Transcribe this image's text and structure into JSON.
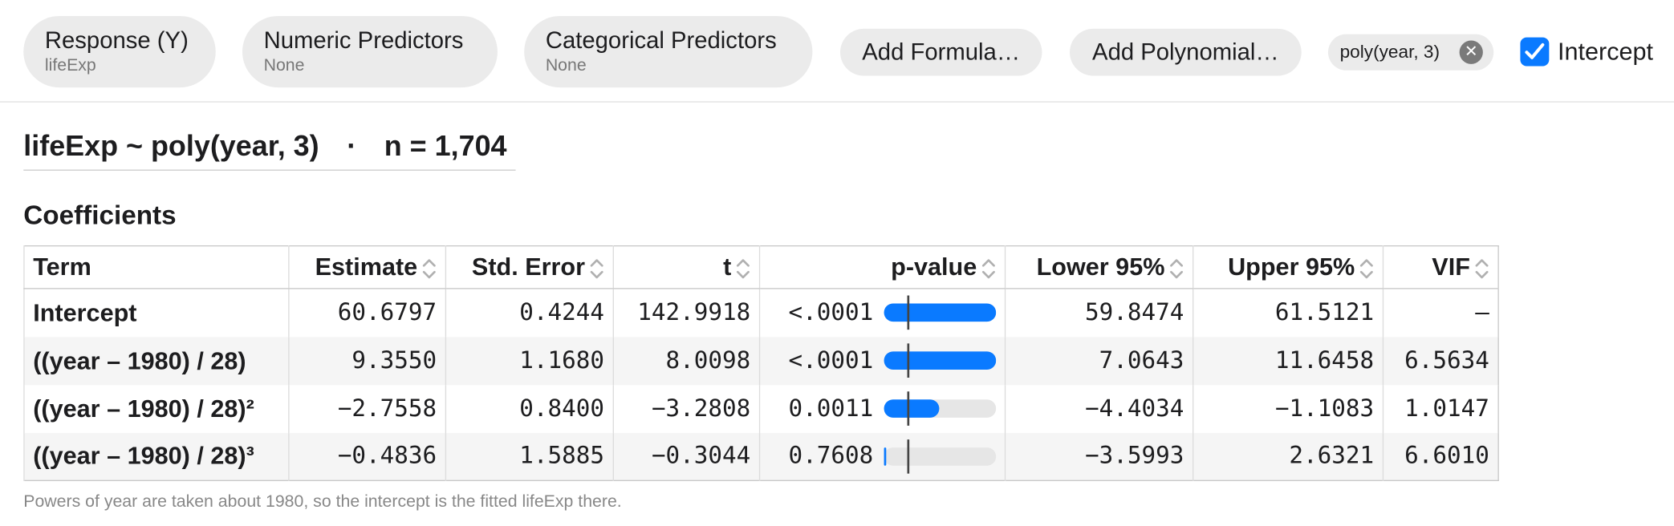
{
  "toolbar": {
    "response": {
      "label": "Response (Y)",
      "value": "lifeExp"
    },
    "numeric": {
      "label": "Numeric Predictors",
      "value": "None"
    },
    "categorical": {
      "label": "Categorical Predictors",
      "value": "None"
    },
    "add_formula": "Add Formula…",
    "add_polynomial": "Add Polynomial…",
    "token": "poly(year, 3)",
    "intercept": "Intercept"
  },
  "formula": {
    "model": "lifeExp ~ poly(year, 3)",
    "separator": "·",
    "n": "n = 1,704"
  },
  "coefficients": {
    "title": "Coefficients",
    "columns": [
      "Term",
      "Estimate",
      "Std. Error",
      "t",
      "p-value",
      "Lower 95%",
      "Upper 95%",
      "VIF"
    ],
    "rows": [
      {
        "term": "Intercept",
        "estimate": "60.6797",
        "std_error": "0.4244",
        "t": "142.9918",
        "p_value": {
          "value": 1e-06,
          "label": "<.0001"
        },
        "lower": "59.8474",
        "upper": "61.5121",
        "vif": "—"
      },
      {
        "term": "((year – 1980) / 28)",
        "estimate": "9.3550",
        "std_error": "1.1680",
        "t": "8.0098",
        "p_value": {
          "value": 1e-06,
          "label": "<.0001"
        },
        "lower": "7.0643",
        "upper": "11.6458",
        "vif": "6.5634"
      },
      {
        "term": "((year – 1980) / 28)²",
        "estimate": "−2.7558",
        "std_error": "0.8400",
        "t": "−3.2808",
        "p_value": 0.0011,
        "lower": "−4.4034",
        "upper": "−1.1083",
        "vif": "1.0147"
      },
      {
        "term": "((year – 1980) / 28)³",
        "estimate": "−0.4836",
        "std_error": "1.5885",
        "t": "−0.3044",
        "p_value": 0.7608,
        "lower": "−3.5993",
        "upper": "2.6321",
        "vif": "6.6010"
      }
    ],
    "p_bar": {
      "log_scale": true,
      "lim": [
        1,
        1e-06
      ],
      "threshold": 0.05,
      "color": "#0a7aff"
    }
  },
  "footnote": "Powers of year are taken about 1980, so the intercept is the fitted lifeExp there."
}
